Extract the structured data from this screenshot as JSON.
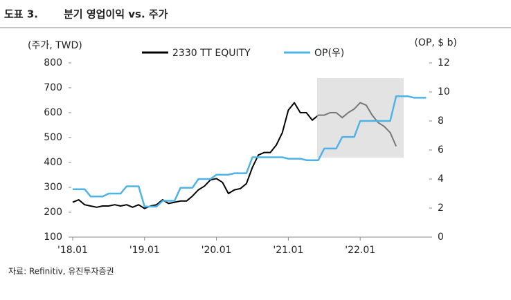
{
  "header": {
    "label": "도표 3.",
    "title": "분기 영업이익 vs. 주가"
  },
  "chart_data": {
    "type": "line",
    "y_label": "(주가, TWD)",
    "y2_label": "(OP, $ b)",
    "x": [
      "2018-01",
      "2018-02",
      "2018-03",
      "2018-04",
      "2018-05",
      "2018-06",
      "2018-07",
      "2018-08",
      "2018-09",
      "2018-10",
      "2018-11",
      "2018-12",
      "2019-01",
      "2019-02",
      "2019-03",
      "2019-04",
      "2019-05",
      "2019-06",
      "2019-07",
      "2019-08",
      "2019-09",
      "2019-10",
      "2019-11",
      "2019-12",
      "2020-01",
      "2020-02",
      "2020-03",
      "2020-04",
      "2020-05",
      "2020-06",
      "2020-07",
      "2020-08",
      "2020-09",
      "2020-10",
      "2020-11",
      "2020-12",
      "2021-01",
      "2021-02",
      "2021-03",
      "2021-04",
      "2021-05",
      "2021-06",
      "2021-07",
      "2021-08",
      "2021-09",
      "2021-10",
      "2021-11",
      "2021-12",
      "2022-01",
      "2022-02",
      "2022-03",
      "2022-04",
      "2022-05",
      "2022-06",
      "2022-07",
      "2022-08",
      "2022-09",
      "2022-10",
      "2022-11",
      "2022-12"
    ],
    "series": [
      {
        "name": "2330 TT EQUITY",
        "color": "#000000",
        "values": [
          240,
          250,
          230,
          225,
          220,
          225,
          225,
          230,
          225,
          230,
          220,
          230,
          215,
          225,
          230,
          250,
          235,
          240,
          245,
          245,
          265,
          290,
          305,
          330,
          335,
          320,
          275,
          290,
          295,
          315,
          380,
          430,
          440,
          440,
          470,
          520,
          610,
          640,
          600,
          600,
          570,
          590,
          590,
          600,
          600,
          580,
          600,
          615,
          640,
          630,
          590,
          560,
          545,
          520,
          465,
          null,
          null,
          null,
          null,
          null
        ]
      },
      {
        "name": "OP(우)",
        "color": "#4db3e6",
        "axis": "y2",
        "values": [
          3.3,
          3.3,
          3.3,
          2.8,
          2.8,
          2.8,
          3.0,
          3.0,
          3.0,
          3.5,
          3.5,
          3.5,
          2.1,
          2.1,
          2.1,
          2.5,
          2.5,
          2.5,
          3.4,
          3.4,
          3.4,
          4.0,
          4.0,
          4.0,
          4.3,
          4.3,
          4.3,
          4.4,
          4.4,
          4.4,
          5.5,
          5.5,
          5.5,
          5.5,
          5.5,
          5.5,
          5.4,
          5.4,
          5.4,
          5.3,
          5.3,
          5.3,
          6.1,
          6.1,
          6.1,
          6.9,
          6.9,
          6.9,
          8.0,
          8.0,
          8.0,
          8.0,
          8.0,
          8.0,
          9.7,
          9.7,
          9.7,
          9.6,
          9.6,
          9.6
        ]
      }
    ],
    "ylim": [
      100,
      800
    ],
    "yticks": [
      100,
      200,
      300,
      400,
      500,
      600,
      700,
      800
    ],
    "y2lim": [
      0,
      12
    ],
    "y2ticks": [
      0,
      2,
      4,
      6,
      8,
      10,
      12
    ],
    "xticks": [
      {
        "value": "2018-01",
        "label": "'18.01"
      },
      {
        "value": "2019-01",
        "label": "'19.01"
      },
      {
        "value": "2020-01",
        "label": "'20.01"
      },
      {
        "value": "2021-01",
        "label": "'21.01"
      },
      {
        "value": "2022-01",
        "label": "'22.01"
      }
    ],
    "source": "자료: Refinitiv, 유진투자증권"
  }
}
